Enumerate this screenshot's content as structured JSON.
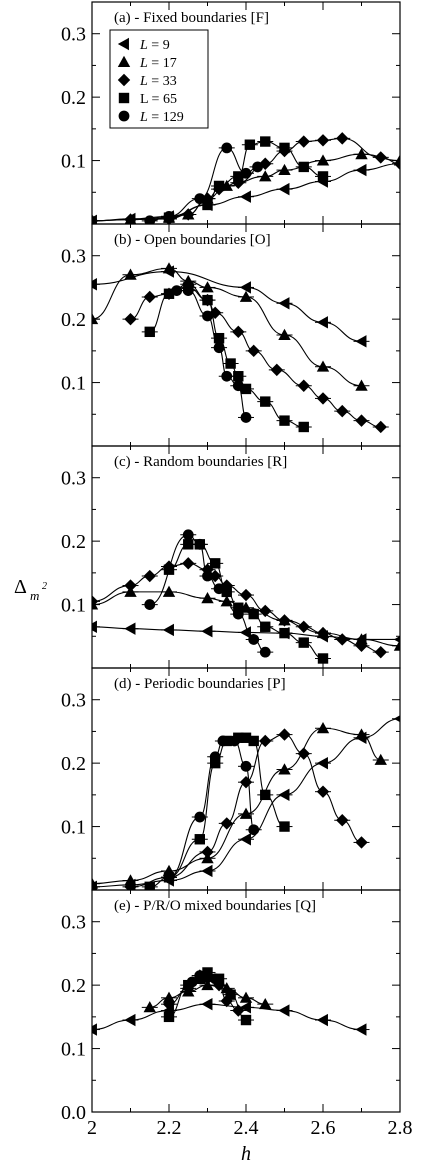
{
  "figure": {
    "xlabel": "h",
    "ylabel_main": "Δ",
    "ylabel_sub": "m",
    "ylabel_sup": "2",
    "legend": [
      {
        "prefix": "L",
        "rest": " = 9",
        "italic": true,
        "marker": "triangle-left"
      },
      {
        "prefix": "L",
        "rest": " = 17",
        "italic": true,
        "marker": "triangle-up"
      },
      {
        "prefix": "L",
        "rest": " = 33",
        "italic": true,
        "marker": "diamond"
      },
      {
        "prefix": "L",
        "rest": " = 65",
        "italic": false,
        "marker": "square"
      },
      {
        "prefix": "L",
        "rest": " = 129",
        "italic": true,
        "marker": "circle"
      }
    ],
    "x_ticks": [
      "2",
      "2.2",
      "2.4",
      "2.6",
      "2.8"
    ],
    "colors": {
      "axis": "#000000",
      "markers": "#000000",
      "background": "#ffffff"
    }
  },
  "chart_data": [
    {
      "type": "scatter",
      "title": "(a) - Fixed boundaries [F]",
      "xlim": [
        2.0,
        2.8
      ],
      "ylim": [
        0.0,
        0.35
      ],
      "y_ticks": [
        "0.1",
        "0.2",
        "0.3"
      ],
      "show_legend": true,
      "series": [
        {
          "name": "L = 9",
          "marker": "triangle-left",
          "x": [
            2.0,
            2.1,
            2.2,
            2.3,
            2.4,
            2.5,
            2.6,
            2.7,
            2.8
          ],
          "y": [
            0.005,
            0.008,
            0.012,
            0.03,
            0.043,
            0.055,
            0.067,
            0.085,
            0.095
          ]
        },
        {
          "name": "L = 17",
          "marker": "triangle-up",
          "x": [
            2.0,
            2.1,
            2.2,
            2.25,
            2.3,
            2.35,
            2.45,
            2.5,
            2.6,
            2.7,
            2.8
          ],
          "y": [
            0.005,
            0.007,
            0.01,
            0.015,
            0.04,
            0.06,
            0.075,
            0.085,
            0.1,
            0.11,
            0.1
          ]
        },
        {
          "name": "L = 33",
          "marker": "diamond",
          "x": [
            2.0,
            2.1,
            2.2,
            2.25,
            2.3,
            2.33,
            2.38,
            2.45,
            2.5,
            2.55,
            2.6,
            2.65,
            2.75,
            2.8
          ],
          "y": [
            0.005,
            0.007,
            0.008,
            0.015,
            0.04,
            0.055,
            0.065,
            0.095,
            0.115,
            0.13,
            0.132,
            0.135,
            0.105,
            0.095
          ]
        },
        {
          "name": "L = 65",
          "marker": "square",
          "x": [
            2.2,
            2.3,
            2.33,
            2.38,
            2.41,
            2.45,
            2.5,
            2.55,
            2.6
          ],
          "y": [
            0.01,
            0.03,
            0.06,
            0.075,
            0.125,
            0.13,
            0.12,
            0.09,
            0.075
          ]
        },
        {
          "name": "L = 129",
          "marker": "circle",
          "x": [
            2.15,
            2.2,
            2.28,
            2.35,
            2.4,
            2.43
          ],
          "y": [
            0.005,
            0.012,
            0.04,
            0.12,
            0.08,
            0.09
          ]
        }
      ]
    },
    {
      "type": "scatter",
      "title": "(b) - Open boundaries [O]",
      "xlim": [
        2.0,
        2.8
      ],
      "ylim": [
        0.0,
        0.35
      ],
      "y_ticks": [
        "0.1",
        "0.2",
        "0.3"
      ],
      "show_legend": false,
      "series": [
        {
          "name": "L = 9",
          "marker": "triangle-left",
          "x": [
            2.0,
            2.2,
            2.4,
            2.5,
            2.6,
            2.7
          ],
          "y": [
            0.255,
            0.275,
            0.25,
            0.225,
            0.195,
            0.165
          ]
        },
        {
          "name": "L = 17",
          "marker": "triangle-up",
          "x": [
            2.0,
            2.1,
            2.2,
            2.25,
            2.3,
            2.4,
            2.5,
            2.6,
            2.7
          ],
          "y": [
            0.2,
            0.27,
            0.28,
            0.26,
            0.25,
            0.235,
            0.175,
            0.125,
            0.095
          ]
        },
        {
          "name": "L = 33",
          "marker": "diamond",
          "x": [
            2.1,
            2.15,
            2.2,
            2.25,
            2.3,
            2.32,
            2.38,
            2.42,
            2.48,
            2.55,
            2.6,
            2.65,
            2.7,
            2.75
          ],
          "y": [
            0.2,
            0.235,
            0.24,
            0.255,
            0.23,
            0.21,
            0.18,
            0.15,
            0.12,
            0.095,
            0.075,
            0.055,
            0.04,
            0.03
          ]
        },
        {
          "name": "L = 65",
          "marker": "square",
          "x": [
            2.15,
            2.2,
            2.25,
            2.3,
            2.33,
            2.36,
            2.38,
            2.4,
            2.45,
            2.5,
            2.55
          ],
          "y": [
            0.18,
            0.24,
            0.25,
            0.23,
            0.17,
            0.13,
            0.11,
            0.09,
            0.07,
            0.04,
            0.03
          ]
        },
        {
          "name": "L = 129",
          "marker": "circle",
          "x": [
            2.22,
            2.25,
            2.3,
            2.33,
            2.35,
            2.38,
            2.4
          ],
          "y": [
            0.245,
            0.245,
            0.205,
            0.155,
            0.11,
            0.095,
            0.045
          ]
        }
      ]
    },
    {
      "type": "scatter",
      "title": "(c) - Random boundaries [R]",
      "xlim": [
        2.0,
        2.8
      ],
      "ylim": [
        0.0,
        0.35
      ],
      "y_ticks": [
        "0.1",
        "0.2",
        "0.3"
      ],
      "show_legend": false,
      "series": [
        {
          "name": "L = 9",
          "marker": "triangle-left",
          "x": [
            2.0,
            2.1,
            2.2,
            2.3,
            2.4,
            2.5,
            2.6,
            2.7,
            2.8
          ],
          "y": [
            0.065,
            0.062,
            0.06,
            0.058,
            0.056,
            0.055,
            0.05,
            0.045,
            0.045
          ]
        },
        {
          "name": "L = 17",
          "marker": "triangle-up",
          "x": [
            2.0,
            2.1,
            2.2,
            2.3,
            2.35,
            2.4,
            2.5,
            2.6,
            2.7,
            2.8
          ],
          "y": [
            0.1,
            0.12,
            0.12,
            0.11,
            0.105,
            0.095,
            0.075,
            0.055,
            0.045,
            0.035
          ]
        },
        {
          "name": "L = 33",
          "marker": "diamond",
          "x": [
            2.0,
            2.1,
            2.15,
            2.2,
            2.25,
            2.3,
            2.32,
            2.35,
            2.4,
            2.45,
            2.5,
            2.55,
            2.6,
            2.65,
            2.7,
            2.75
          ],
          "y": [
            0.105,
            0.13,
            0.145,
            0.16,
            0.165,
            0.155,
            0.145,
            0.13,
            0.115,
            0.09,
            0.075,
            0.065,
            0.055,
            0.045,
            0.035,
            0.025
          ]
        },
        {
          "name": "L = 65",
          "marker": "square",
          "x": [
            2.2,
            2.25,
            2.28,
            2.32,
            2.35,
            2.38,
            2.42,
            2.45,
            2.5,
            2.55,
            2.6
          ],
          "y": [
            0.155,
            0.195,
            0.195,
            0.165,
            0.12,
            0.095,
            0.085,
            0.065,
            0.055,
            0.04,
            0.015
          ]
        },
        {
          "name": "L = 129",
          "marker": "circle",
          "x": [
            2.15,
            2.25,
            2.28,
            2.3,
            2.33,
            2.38,
            2.42,
            2.45
          ],
          "y": [
            0.1,
            0.21,
            0.195,
            0.145,
            0.125,
            0.085,
            0.045,
            0.025
          ]
        }
      ]
    },
    {
      "type": "scatter",
      "title": "(d) - Periodic boundaries [P]",
      "xlim": [
        2.0,
        2.8
      ],
      "ylim": [
        0.0,
        0.35
      ],
      "y_ticks": [
        "0.1",
        "0.2",
        "0.3"
      ],
      "show_legend": false,
      "series": [
        {
          "name": "L = 9",
          "marker": "triangle-left",
          "x": [
            2.0,
            2.1,
            2.2,
            2.3,
            2.4,
            2.5,
            2.6,
            2.7,
            2.8
          ],
          "y": [
            0.005,
            0.008,
            0.015,
            0.03,
            0.08,
            0.15,
            0.2,
            0.24,
            0.27
          ]
        },
        {
          "name": "L = 17",
          "marker": "triangle-up",
          "x": [
            2.0,
            2.1,
            2.2,
            2.3,
            2.4,
            2.5,
            2.6,
            2.7,
            2.75
          ],
          "y": [
            0.01,
            0.015,
            0.03,
            0.05,
            0.12,
            0.19,
            0.255,
            0.245,
            0.205
          ]
        },
        {
          "name": "L = 33",
          "marker": "diamond",
          "x": [
            2.1,
            2.2,
            2.3,
            2.35,
            2.4,
            2.45,
            2.5,
            2.55,
            2.6,
            2.65,
            2.7
          ],
          "y": [
            0.005,
            0.02,
            0.06,
            0.105,
            0.17,
            0.235,
            0.245,
            0.215,
            0.155,
            0.11,
            0.075
          ]
        },
        {
          "name": "L = 65",
          "marker": "square",
          "x": [
            2.15,
            2.2,
            2.28,
            2.32,
            2.35,
            2.38,
            2.4,
            2.42,
            2.45,
            2.5
          ],
          "y": [
            0.005,
            0.02,
            0.08,
            0.2,
            0.235,
            0.24,
            0.24,
            0.235,
            0.15,
            0.1
          ]
        },
        {
          "name": "L = 129",
          "marker": "circle",
          "x": [
            2.2,
            2.28,
            2.32,
            2.34,
            2.37,
            2.4,
            2.42
          ],
          "y": [
            0.02,
            0.115,
            0.21,
            0.235,
            0.235,
            0.195,
            0.095
          ]
        }
      ]
    },
    {
      "type": "scatter",
      "title": "(e) - P/R/O mixed boundaries [Q]",
      "xlim": [
        2.0,
        2.8
      ],
      "ylim": [
        0.0,
        0.35
      ],
      "y_ticks": [
        "0.0",
        "0.1",
        "0.2",
        "0.3"
      ],
      "show_legend": false,
      "series": [
        {
          "name": "L = 9",
          "marker": "triangle-left",
          "x": [
            2.0,
            2.1,
            2.2,
            2.3,
            2.4,
            2.5,
            2.6,
            2.7
          ],
          "y": [
            0.13,
            0.145,
            0.16,
            0.17,
            0.165,
            0.16,
            0.145,
            0.13
          ]
        },
        {
          "name": "L = 17",
          "marker": "triangle-up",
          "x": [
            2.15,
            2.2,
            2.25,
            2.3,
            2.35,
            2.4,
            2.45
          ],
          "y": [
            0.165,
            0.18,
            0.19,
            0.2,
            0.195,
            0.18,
            0.17
          ]
        },
        {
          "name": "L = 33",
          "marker": "diamond",
          "x": [
            2.2,
            2.25,
            2.28,
            2.3,
            2.33,
            2.35,
            2.38
          ],
          "y": [
            0.17,
            0.195,
            0.215,
            0.21,
            0.2,
            0.175,
            0.16
          ]
        },
        {
          "name": "L = 65",
          "marker": "square",
          "x": [
            2.2,
            2.25,
            2.28,
            2.3,
            2.33,
            2.36,
            2.4
          ],
          "y": [
            0.15,
            0.2,
            0.21,
            0.22,
            0.21,
            0.185,
            0.145
          ]
        },
        {
          "name": "L = 129",
          "marker": "circle",
          "x": [
            2.26,
            2.28,
            2.3,
            2.32
          ],
          "y": [
            0.205,
            0.215,
            0.215,
            0.21
          ]
        }
      ]
    }
  ]
}
